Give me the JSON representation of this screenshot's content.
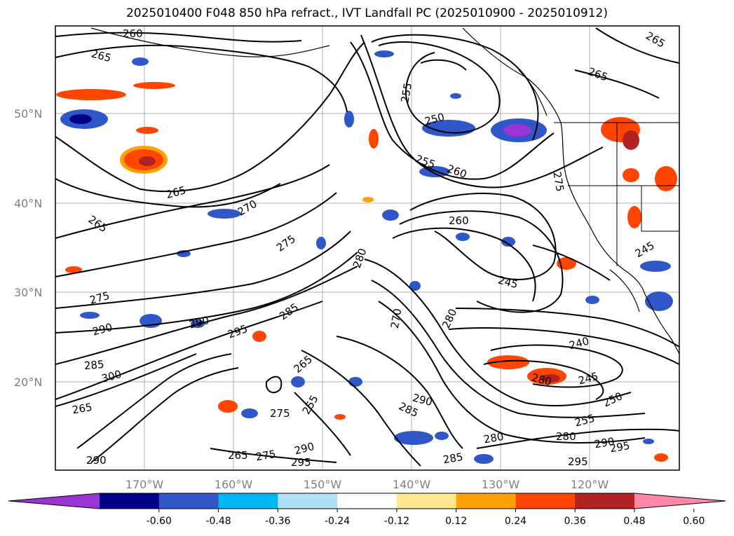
{
  "title": "2025010400 F048 850 hPa refract., IVT Landfall PC (2025010900 - 2025010912)",
  "lat_labels": [
    "50°N",
    "40°N",
    "30°N",
    "20°N"
  ],
  "lon_labels": [
    "170°W",
    "160°W",
    "150°W",
    "140°W",
    "130°W",
    "120°W"
  ],
  "colorbar": {
    "colors": [
      "#9a34d4",
      "#00008b",
      "#2f57c8",
      "#00b7f5",
      "#afe0f8",
      "#ffffff",
      "#ffe88e",
      "#ffa200",
      "#ff4500",
      "#b22222",
      "#ff88aa"
    ],
    "ticks": [
      "-0.60",
      "-0.48",
      "-0.36",
      "-0.24",
      "-0.12",
      "0.12",
      "0.24",
      "0.36",
      "0.48",
      "0.60"
    ]
  },
  "contour_labels": [
    {
      "text": "260"
    },
    {
      "text": "265"
    },
    {
      "text": "255"
    },
    {
      "text": "250"
    },
    {
      "text": "265"
    },
    {
      "text": "265"
    },
    {
      "text": "255"
    },
    {
      "text": "260"
    },
    {
      "text": "275"
    },
    {
      "text": "265"
    },
    {
      "text": "270"
    },
    {
      "text": "265"
    },
    {
      "text": "275"
    },
    {
      "text": "280"
    },
    {
      "text": "260"
    },
    {
      "text": "245"
    },
    {
      "text": "275"
    },
    {
      "text": "270"
    },
    {
      "text": "280"
    },
    {
      "text": "245"
    },
    {
      "text": "290"
    },
    {
      "text": "290"
    },
    {
      "text": "295"
    },
    {
      "text": "285"
    },
    {
      "text": "240"
    },
    {
      "text": "285"
    },
    {
      "text": "300"
    },
    {
      "text": "280"
    },
    {
      "text": "265"
    },
    {
      "text": "245"
    },
    {
      "text": "265"
    },
    {
      "text": "255"
    },
    {
      "text": "250"
    },
    {
      "text": "275"
    },
    {
      "text": "290"
    },
    {
      "text": "285"
    },
    {
      "text": "255"
    },
    {
      "text": "280"
    },
    {
      "text": "280"
    },
    {
      "text": "290"
    },
    {
      "text": "295"
    },
    {
      "text": "290"
    },
    {
      "text": "265"
    },
    {
      "text": "275"
    },
    {
      "text": "295"
    },
    {
      "text": "285"
    },
    {
      "text": "295"
    },
    {
      "text": "290"
    }
  ]
}
